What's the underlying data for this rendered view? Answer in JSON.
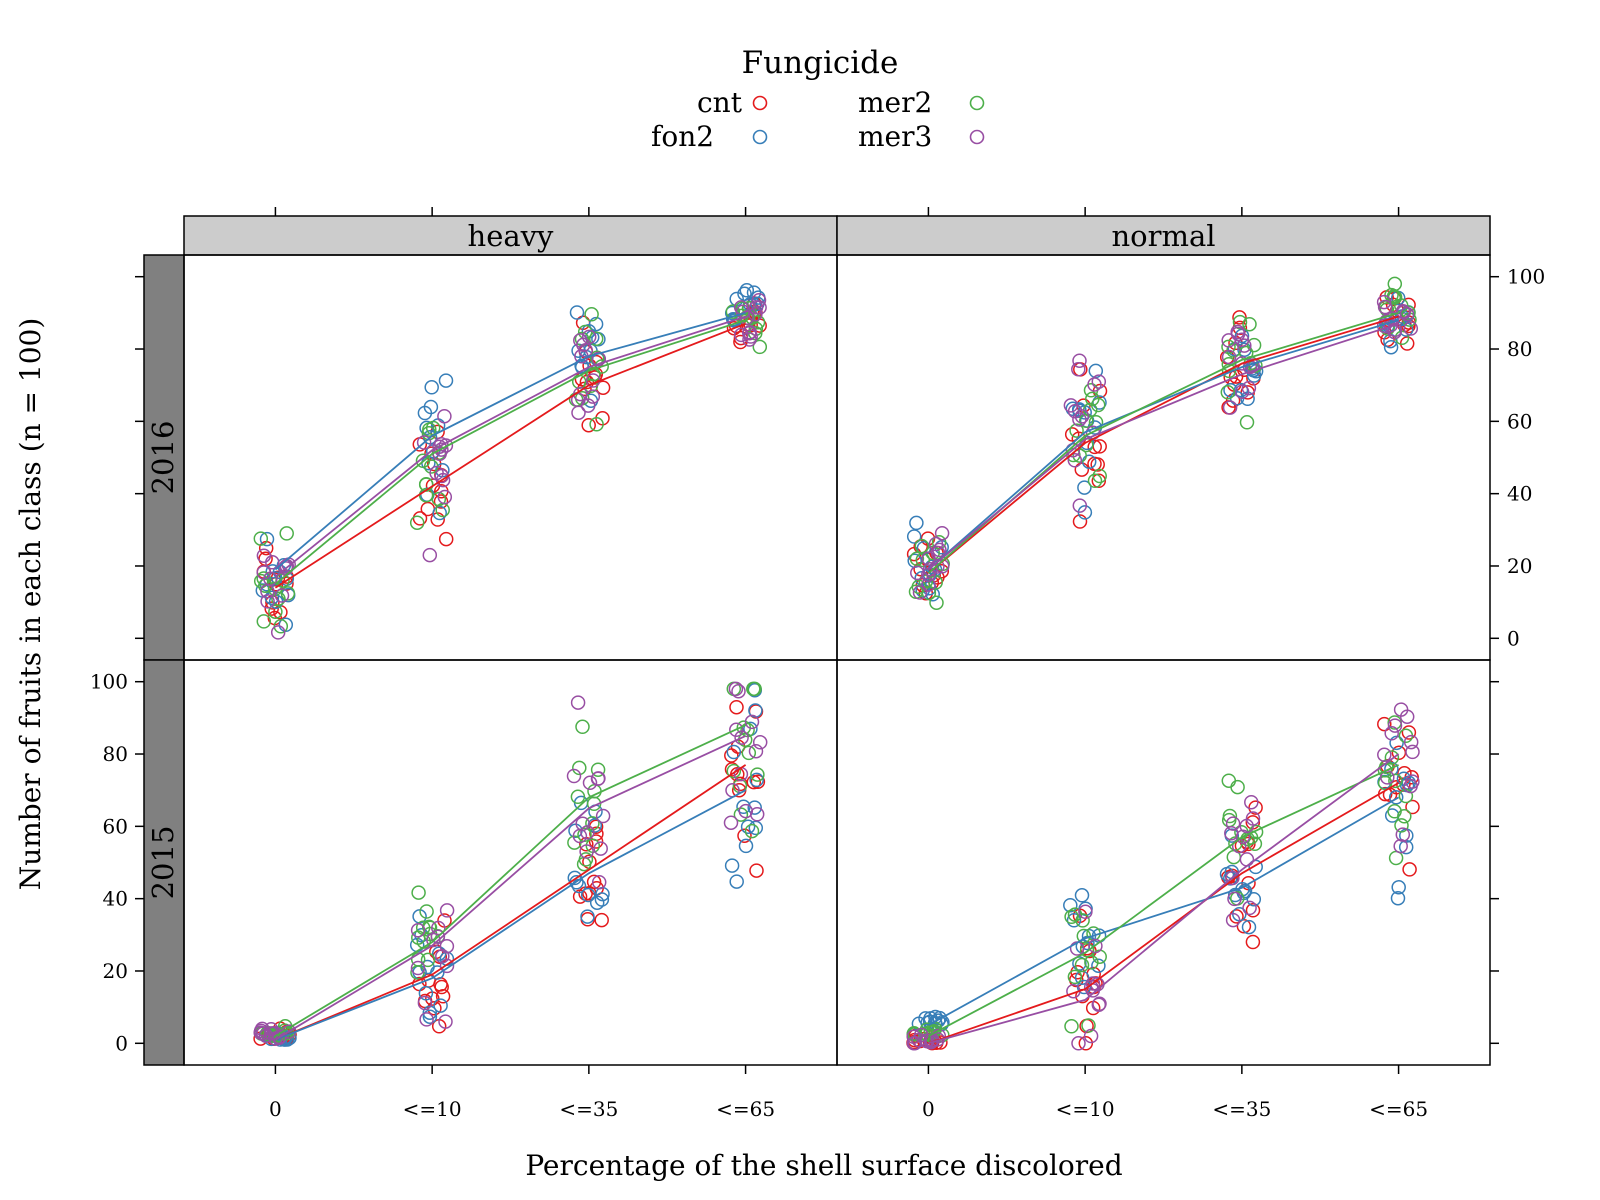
{
  "chart_data": {
    "type": "scatter",
    "subtype": "lattice-stripplot-with-mean-lines",
    "xlabel": "Percentage of the shell surface discolored",
    "ylabel": "Number of fruits in each class (n = 100)",
    "categories": [
      "0",
      "<=10",
      "<=35",
      "<=65"
    ],
    "ylim": [
      -6,
      106
    ],
    "yticks": [
      "0",
      "20",
      "40",
      "60",
      "80",
      "100"
    ],
    "legend": {
      "title": "Fungicide",
      "placement": "top-center",
      "entries": [
        {
          "name": "cnt",
          "color": "#e41a1c"
        },
        {
          "name": "fon2",
          "color": "#377eb8"
        },
        {
          "name": "mer2",
          "color": "#4daf4a"
        },
        {
          "name": "mer3",
          "color": "#984ea3"
        }
      ]
    },
    "column_strips": [
      "heavy",
      "normal"
    ],
    "row_strips": [
      "2016",
      "2015"
    ],
    "panels": [
      {
        "col": "heavy",
        "row": "2016",
        "series": [
          {
            "name": "cnt",
            "means": [
              14,
              42,
              70,
              87
            ]
          },
          {
            "name": "fon2",
            "means": [
              19,
              56,
              78,
              90
            ]
          },
          {
            "name": "mer2",
            "means": [
              15,
              51,
              74,
              88
            ]
          },
          {
            "name": "mer3",
            "means": [
              17,
              52,
              75,
              89
            ]
          }
        ]
      },
      {
        "col": "normal",
        "row": "2016",
        "series": [
          {
            "name": "cnt",
            "means": [
              18,
              54,
              76,
              89
            ]
          },
          {
            "name": "fon2",
            "means": [
              19,
              57,
              75,
              88
            ]
          },
          {
            "name": "mer2",
            "means": [
              18,
              56,
              77,
              90
            ]
          },
          {
            "name": "mer3",
            "means": [
              19,
              55,
              73,
              87
            ]
          }
        ]
      },
      {
        "col": "heavy",
        "row": "2015",
        "series": [
          {
            "name": "cnt",
            "means": [
              1,
              19,
              48,
              77
            ]
          },
          {
            "name": "fon2",
            "means": [
              1,
              18,
              47,
              70
            ]
          },
          {
            "name": "mer2",
            "means": [
              2,
              28,
              68,
              88
            ]
          },
          {
            "name": "mer3",
            "means": [
              1,
              27,
              65,
              85
            ]
          }
        ]
      },
      {
        "col": "normal",
        "row": "2015",
        "series": [
          {
            "name": "cnt",
            "means": [
              0,
              15,
              47,
              72
            ]
          },
          {
            "name": "fon2",
            "means": [
              5,
              29,
              43,
              68
            ]
          },
          {
            "name": "mer2",
            "means": [
              2,
              25,
              57,
              77
            ]
          },
          {
            "name": "mer3",
            "means": [
              0,
              12,
              48,
              80
            ]
          }
        ]
      }
    ]
  }
}
